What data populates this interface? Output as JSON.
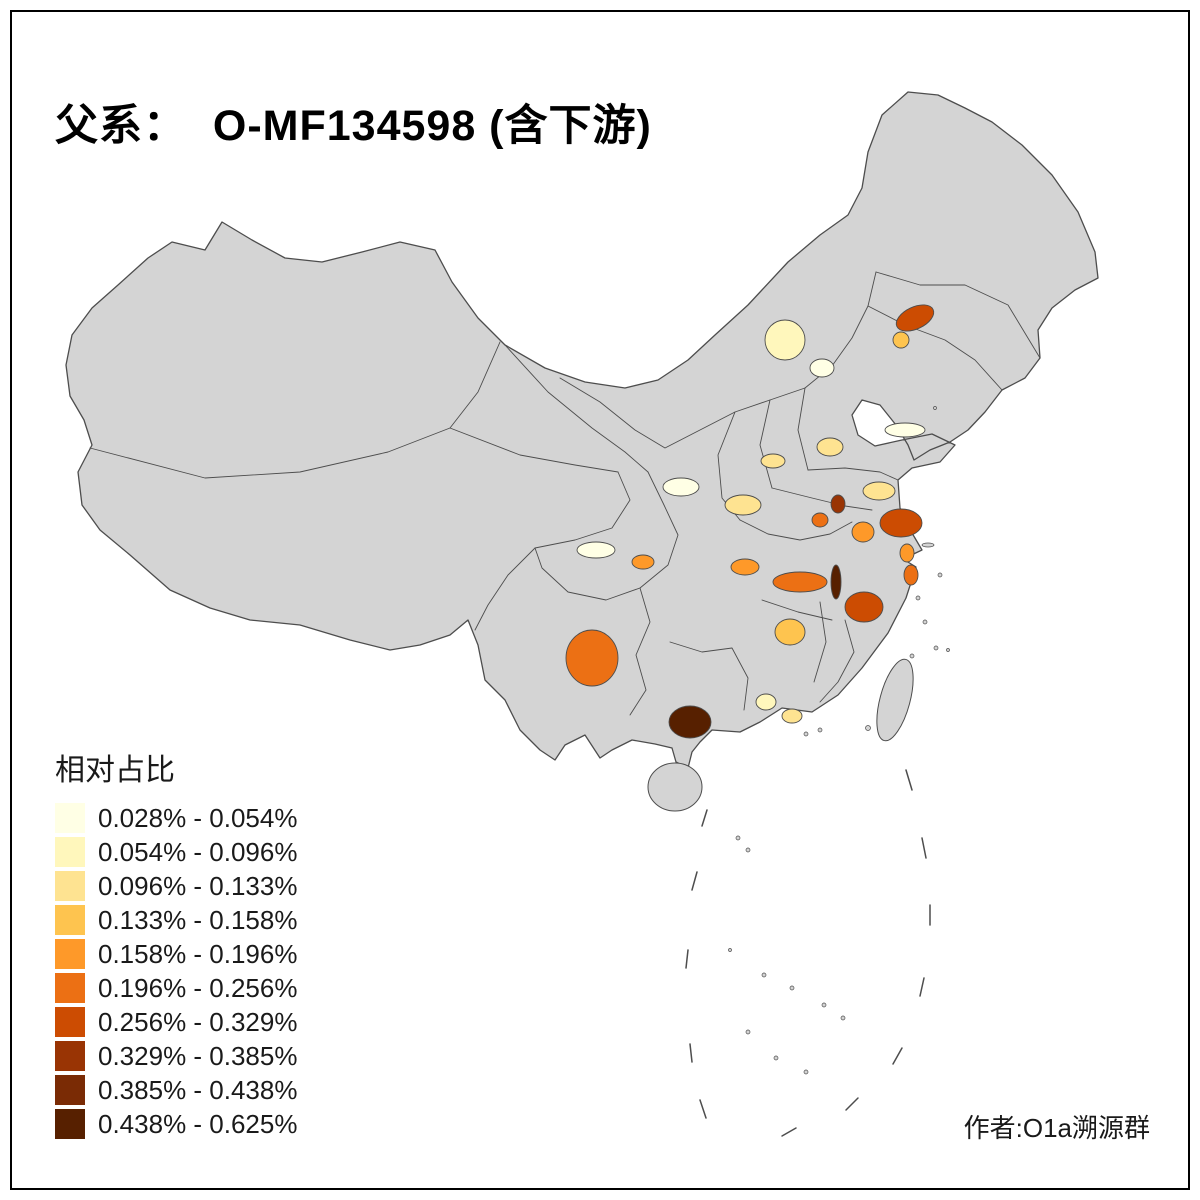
{
  "page": {
    "title": "父系：  O-MF134598 (含下游)",
    "attribution": "作者:O1a溯源群"
  },
  "legend": {
    "title": "相对占比",
    "bins": [
      {
        "label": "0.028% - 0.054%",
        "color": "#FFFFE5"
      },
      {
        "label": "0.054% - 0.096%",
        "color": "#FFF7BC"
      },
      {
        "label": "0.096% - 0.133%",
        "color": "#FEE391"
      },
      {
        "label": "0.133% - 0.158%",
        "color": "#FEC44F"
      },
      {
        "label": "0.158% - 0.196%",
        "color": "#FE9929"
      },
      {
        "label": "0.196% - 0.256%",
        "color": "#EC7014"
      },
      {
        "label": "0.256% - 0.329%",
        "color": "#CC4C02"
      },
      {
        "label": "0.329% - 0.385%",
        "color": "#993404"
      },
      {
        "label": "0.385% - 0.438%",
        "color": "#7A2B05"
      },
      {
        "label": "0.438% - 0.625%",
        "color": "#572000"
      }
    ]
  },
  "map": {
    "base_fill": "#D4D4D4",
    "border_color": "#4D4D4D",
    "sea_color": "#FFFFFF"
  }
}
